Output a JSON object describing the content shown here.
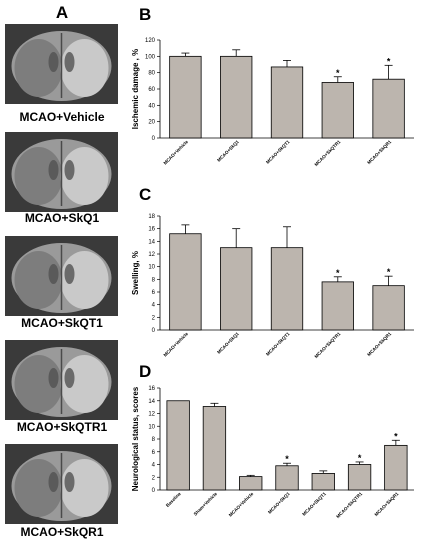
{
  "panels": {
    "mri_letter": "A",
    "mri_captions": [
      "MCAO+Vehicle",
      "MCAO+SkQ1",
      "MCAO+SkQT1",
      "MCAO+SkQTR1",
      "MCAO+SkQR1"
    ]
  },
  "colors": {
    "bar_fill": "#bcb5ae",
    "bar_stroke": "#000000",
    "brain_light": "#c9c9c9",
    "brain_dark": "#5a5a5a",
    "mri_background": "#3a3a3a"
  },
  "chart_data": [
    {
      "panel": "B",
      "type": "bar",
      "categories": [
        "MCAO+Vehicle",
        "MCAO+SkQ1",
        "MCAO+SkQT1",
        "MCAO+SkQTR1",
        "MCAO+SkQR1"
      ],
      "values": [
        100,
        100,
        87,
        68,
        72
      ],
      "errors": [
        4,
        8,
        8,
        7,
        17
      ],
      "significant": [
        false,
        false,
        false,
        true,
        true
      ],
      "significance_marker": "*",
      "ylabel": "Ischemic damage , %",
      "ylim": [
        0,
        120
      ],
      "yticks": [
        0,
        20,
        40,
        60,
        80,
        100,
        120
      ],
      "grid": false
    },
    {
      "panel": "C",
      "type": "bar",
      "categories": [
        "MCAO+Vehicle",
        "MCAO+SkQ1",
        "MCAO+SkQT1",
        "MCAO+SkQTR1",
        "MCAO+SkQR1"
      ],
      "values": [
        15.2,
        13.0,
        13.0,
        7.6,
        7.0
      ],
      "errors": [
        1.4,
        3.0,
        3.3,
        0.8,
        1.5
      ],
      "significant": [
        false,
        false,
        false,
        true,
        true
      ],
      "significance_marker": "*",
      "ylabel": "Swelling, %",
      "ylim": [
        0,
        18
      ],
      "yticks": [
        0,
        2,
        4,
        6,
        8,
        10,
        12,
        14,
        16,
        18
      ],
      "grid": false
    },
    {
      "panel": "D",
      "type": "bar",
      "categories": [
        "Baseline",
        "Sham+Vehicle",
        "MCAO+Vehicle",
        "MCAO+SkQ1",
        "MCAO+SkQT1",
        "MCAO+SkQTR1",
        "MCAO+SkQR1"
      ],
      "values": [
        14.0,
        13.1,
        2.1,
        3.8,
        2.6,
        4.0,
        7.0
      ],
      "errors": [
        0,
        0.5,
        0.2,
        0.4,
        0.4,
        0.4,
        0.8
      ],
      "significant": [
        false,
        false,
        false,
        true,
        false,
        true,
        true
      ],
      "significance_marker": "*",
      "ylabel": "Neurological status, scores",
      "ylim": [
        0,
        16
      ],
      "yticks": [
        0,
        2,
        4,
        6,
        8,
        10,
        12,
        14,
        16
      ],
      "grid": false
    }
  ]
}
